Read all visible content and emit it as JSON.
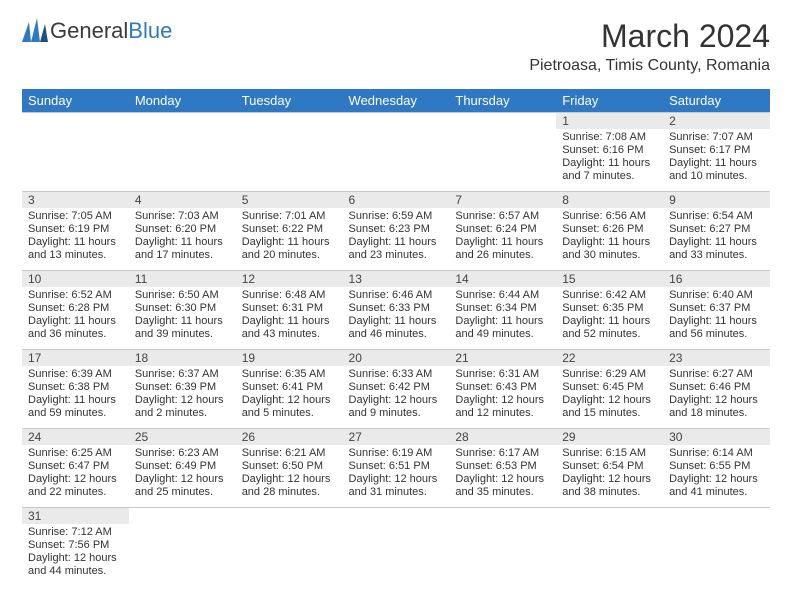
{
  "brand": {
    "part1": "General",
    "part2": "Blue"
  },
  "title": "March 2024",
  "location": "Pietroasa, Timis County, Romania",
  "colors": {
    "header_bg": "#2f78c3",
    "header_text": "#ffffff",
    "date_bar_bg": "#eaeaea",
    "border": "#c8c8c8"
  },
  "weekdays": [
    "Sunday",
    "Monday",
    "Tuesday",
    "Wednesday",
    "Thursday",
    "Friday",
    "Saturday"
  ],
  "days": [
    {
      "n": "1",
      "sr": "Sunrise: 7:08 AM",
      "ss": "Sunset: 6:16 PM",
      "d1": "Daylight: 11 hours",
      "d2": "and 7 minutes."
    },
    {
      "n": "2",
      "sr": "Sunrise: 7:07 AM",
      "ss": "Sunset: 6:17 PM",
      "d1": "Daylight: 11 hours",
      "d2": "and 10 minutes."
    },
    {
      "n": "3",
      "sr": "Sunrise: 7:05 AM",
      "ss": "Sunset: 6:19 PM",
      "d1": "Daylight: 11 hours",
      "d2": "and 13 minutes."
    },
    {
      "n": "4",
      "sr": "Sunrise: 7:03 AM",
      "ss": "Sunset: 6:20 PM",
      "d1": "Daylight: 11 hours",
      "d2": "and 17 minutes."
    },
    {
      "n": "5",
      "sr": "Sunrise: 7:01 AM",
      "ss": "Sunset: 6:22 PM",
      "d1": "Daylight: 11 hours",
      "d2": "and 20 minutes."
    },
    {
      "n": "6",
      "sr": "Sunrise: 6:59 AM",
      "ss": "Sunset: 6:23 PM",
      "d1": "Daylight: 11 hours",
      "d2": "and 23 minutes."
    },
    {
      "n": "7",
      "sr": "Sunrise: 6:57 AM",
      "ss": "Sunset: 6:24 PM",
      "d1": "Daylight: 11 hours",
      "d2": "and 26 minutes."
    },
    {
      "n": "8",
      "sr": "Sunrise: 6:56 AM",
      "ss": "Sunset: 6:26 PM",
      "d1": "Daylight: 11 hours",
      "d2": "and 30 minutes."
    },
    {
      "n": "9",
      "sr": "Sunrise: 6:54 AM",
      "ss": "Sunset: 6:27 PM",
      "d1": "Daylight: 11 hours",
      "d2": "and 33 minutes."
    },
    {
      "n": "10",
      "sr": "Sunrise: 6:52 AM",
      "ss": "Sunset: 6:28 PM",
      "d1": "Daylight: 11 hours",
      "d2": "and 36 minutes."
    },
    {
      "n": "11",
      "sr": "Sunrise: 6:50 AM",
      "ss": "Sunset: 6:30 PM",
      "d1": "Daylight: 11 hours",
      "d2": "and 39 minutes."
    },
    {
      "n": "12",
      "sr": "Sunrise: 6:48 AM",
      "ss": "Sunset: 6:31 PM",
      "d1": "Daylight: 11 hours",
      "d2": "and 43 minutes."
    },
    {
      "n": "13",
      "sr": "Sunrise: 6:46 AM",
      "ss": "Sunset: 6:33 PM",
      "d1": "Daylight: 11 hours",
      "d2": "and 46 minutes."
    },
    {
      "n": "14",
      "sr": "Sunrise: 6:44 AM",
      "ss": "Sunset: 6:34 PM",
      "d1": "Daylight: 11 hours",
      "d2": "and 49 minutes."
    },
    {
      "n": "15",
      "sr": "Sunrise: 6:42 AM",
      "ss": "Sunset: 6:35 PM",
      "d1": "Daylight: 11 hours",
      "d2": "and 52 minutes."
    },
    {
      "n": "16",
      "sr": "Sunrise: 6:40 AM",
      "ss": "Sunset: 6:37 PM",
      "d1": "Daylight: 11 hours",
      "d2": "and 56 minutes."
    },
    {
      "n": "17",
      "sr": "Sunrise: 6:39 AM",
      "ss": "Sunset: 6:38 PM",
      "d1": "Daylight: 11 hours",
      "d2": "and 59 minutes."
    },
    {
      "n": "18",
      "sr": "Sunrise: 6:37 AM",
      "ss": "Sunset: 6:39 PM",
      "d1": "Daylight: 12 hours",
      "d2": "and 2 minutes."
    },
    {
      "n": "19",
      "sr": "Sunrise: 6:35 AM",
      "ss": "Sunset: 6:41 PM",
      "d1": "Daylight: 12 hours",
      "d2": "and 5 minutes."
    },
    {
      "n": "20",
      "sr": "Sunrise: 6:33 AM",
      "ss": "Sunset: 6:42 PM",
      "d1": "Daylight: 12 hours",
      "d2": "and 9 minutes."
    },
    {
      "n": "21",
      "sr": "Sunrise: 6:31 AM",
      "ss": "Sunset: 6:43 PM",
      "d1": "Daylight: 12 hours",
      "d2": "and 12 minutes."
    },
    {
      "n": "22",
      "sr": "Sunrise: 6:29 AM",
      "ss": "Sunset: 6:45 PM",
      "d1": "Daylight: 12 hours",
      "d2": "and 15 minutes."
    },
    {
      "n": "23",
      "sr": "Sunrise: 6:27 AM",
      "ss": "Sunset: 6:46 PM",
      "d1": "Daylight: 12 hours",
      "d2": "and 18 minutes."
    },
    {
      "n": "24",
      "sr": "Sunrise: 6:25 AM",
      "ss": "Sunset: 6:47 PM",
      "d1": "Daylight: 12 hours",
      "d2": "and 22 minutes."
    },
    {
      "n": "25",
      "sr": "Sunrise: 6:23 AM",
      "ss": "Sunset: 6:49 PM",
      "d1": "Daylight: 12 hours",
      "d2": "and 25 minutes."
    },
    {
      "n": "26",
      "sr": "Sunrise: 6:21 AM",
      "ss": "Sunset: 6:50 PM",
      "d1": "Daylight: 12 hours",
      "d2": "and 28 minutes."
    },
    {
      "n": "27",
      "sr": "Sunrise: 6:19 AM",
      "ss": "Sunset: 6:51 PM",
      "d1": "Daylight: 12 hours",
      "d2": "and 31 minutes."
    },
    {
      "n": "28",
      "sr": "Sunrise: 6:17 AM",
      "ss": "Sunset: 6:53 PM",
      "d1": "Daylight: 12 hours",
      "d2": "and 35 minutes."
    },
    {
      "n": "29",
      "sr": "Sunrise: 6:15 AM",
      "ss": "Sunset: 6:54 PM",
      "d1": "Daylight: 12 hours",
      "d2": "and 38 minutes."
    },
    {
      "n": "30",
      "sr": "Sunrise: 6:14 AM",
      "ss": "Sunset: 6:55 PM",
      "d1": "Daylight: 12 hours",
      "d2": "and 41 minutes."
    },
    {
      "n": "31",
      "sr": "Sunrise: 7:12 AM",
      "ss": "Sunset: 7:56 PM",
      "d1": "Daylight: 12 hours",
      "d2": "and 44 minutes."
    }
  ],
  "leading_blanks": 5
}
